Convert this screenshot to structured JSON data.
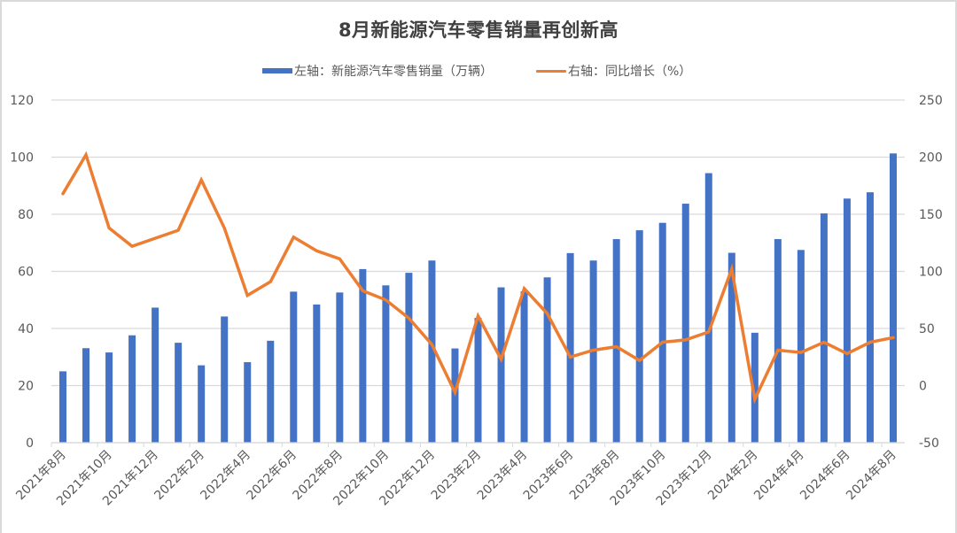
{
  "chart_data": {
    "type": "bar+line",
    "title": "8月新能源汽车零售销量再创新高",
    "legend_position": "top",
    "grid": true,
    "categories": [
      "2021年8月",
      "2021年9月",
      "2021年10月",
      "2021年11月",
      "2021年12月",
      "2022年1月",
      "2022年2月",
      "2022年3月",
      "2022年4月",
      "2022年5月",
      "2022年6月",
      "2022年7月",
      "2022年8月",
      "2022年9月",
      "2022年10月",
      "2022年11月",
      "2022年12月",
      "2023年1月",
      "2023年2月",
      "2023年3月",
      "2023年4月",
      "2023年5月",
      "2023年6月",
      "2023年7月",
      "2023年8月",
      "2023年9月",
      "2023年10月",
      "2023年11月",
      "2023年12月",
      "2024年1月",
      "2024年2月",
      "2024年3月",
      "2024年4月",
      "2024年5月",
      "2024年6月",
      "2024年7月",
      "2024年8月"
    ],
    "x_tick_labels": [
      "2021年8月",
      "2021年10月",
      "2021年12月",
      "2022年2月",
      "2022年4月",
      "2022年6月",
      "2022年8月",
      "2022年10月",
      "2022年12月",
      "2023年2月",
      "2023年4月",
      "2023年6月",
      "2023年8月",
      "2023年10月",
      "2023年12月",
      "2024年2月",
      "2024年4月",
      "2024年6月",
      "2024年8月"
    ],
    "series": [
      {
        "name": "左轴：新能源汽车零售销量（万辆）",
        "type": "bar",
        "axis": "left",
        "color": "#4472C4",
        "values": [
          25.0,
          33.1,
          31.6,
          37.6,
          47.3,
          35.0,
          27.1,
          44.2,
          28.2,
          35.7,
          52.9,
          48.4,
          52.6,
          60.8,
          55.1,
          59.5,
          63.8,
          33.0,
          43.7,
          54.4,
          53.0,
          57.9,
          66.4,
          63.8,
          71.3,
          74.4,
          77.0,
          83.7,
          94.4,
          66.5,
          38.5,
          71.3,
          67.5,
          80.3,
          85.5,
          87.7,
          101.3
        ]
      },
      {
        "name": "右轴：同比增长（%）",
        "type": "line",
        "axis": "right",
        "color": "#ED7D31",
        "values": [
          168,
          202,
          138,
          122,
          129,
          136,
          180,
          138,
          79,
          91,
          130,
          118,
          111,
          83,
          75,
          59,
          36,
          -6,
          61,
          23,
          85,
          63,
          25,
          31,
          34,
          22,
          38,
          40,
          47,
          102,
          -12,
          31,
          29,
          38,
          28,
          38,
          42
        ]
      }
    ],
    "left_axis": {
      "label": "",
      "range": [
        0,
        120
      ],
      "ticks": [
        0,
        20,
        40,
        60,
        80,
        100,
        120
      ]
    },
    "right_axis": {
      "label": "",
      "range": [
        -50,
        250
      ],
      "ticks": [
        -50,
        0,
        50,
        100,
        150,
        200,
        250
      ]
    },
    "xlabel": "",
    "ylabel": ""
  },
  "legend": {
    "bar_label": "左轴：新能源汽车零售销量（万辆）",
    "line_label": "右轴：同比增长（%）"
  },
  "colors": {
    "bar": "#4472C4",
    "line": "#ED7D31",
    "grid": "#d9d9d9",
    "text": "#595959",
    "title": "#404040"
  }
}
